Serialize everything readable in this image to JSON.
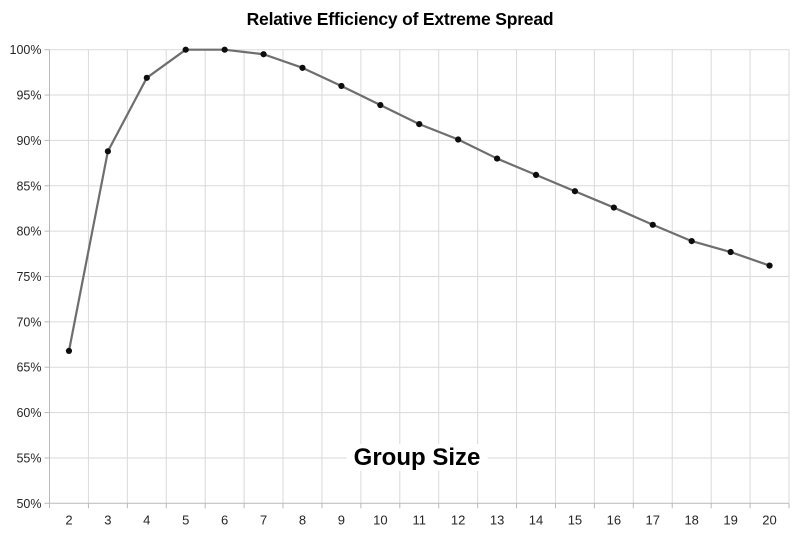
{
  "chart_data": {
    "type": "line",
    "title": "Relative Efficiency of Extreme Spread",
    "xlabel": "Group Size",
    "ylabel": "",
    "x": [
      2,
      3,
      4,
      5,
      6,
      7,
      8,
      9,
      10,
      11,
      12,
      13,
      14,
      15,
      16,
      17,
      18,
      19,
      20
    ],
    "values": [
      66.8,
      88.8,
      96.9,
      100.0,
      100.0,
      99.5,
      98.0,
      96.0,
      93.9,
      91.8,
      90.1,
      88.0,
      86.2,
      84.4,
      82.6,
      80.7,
      78.9,
      77.7,
      76.2
    ],
    "ylim": [
      50,
      100
    ],
    "ytick_step": 5,
    "ytick_suffix": "%",
    "grid": true,
    "legend": false,
    "colors": {
      "line": "#6e6e6e",
      "marker": "#0d0d0d",
      "gridline": "#dadada",
      "axis": "#b9b9b9",
      "tick_label": "#262626",
      "title": "#000000",
      "background": "#ffffff"
    }
  }
}
